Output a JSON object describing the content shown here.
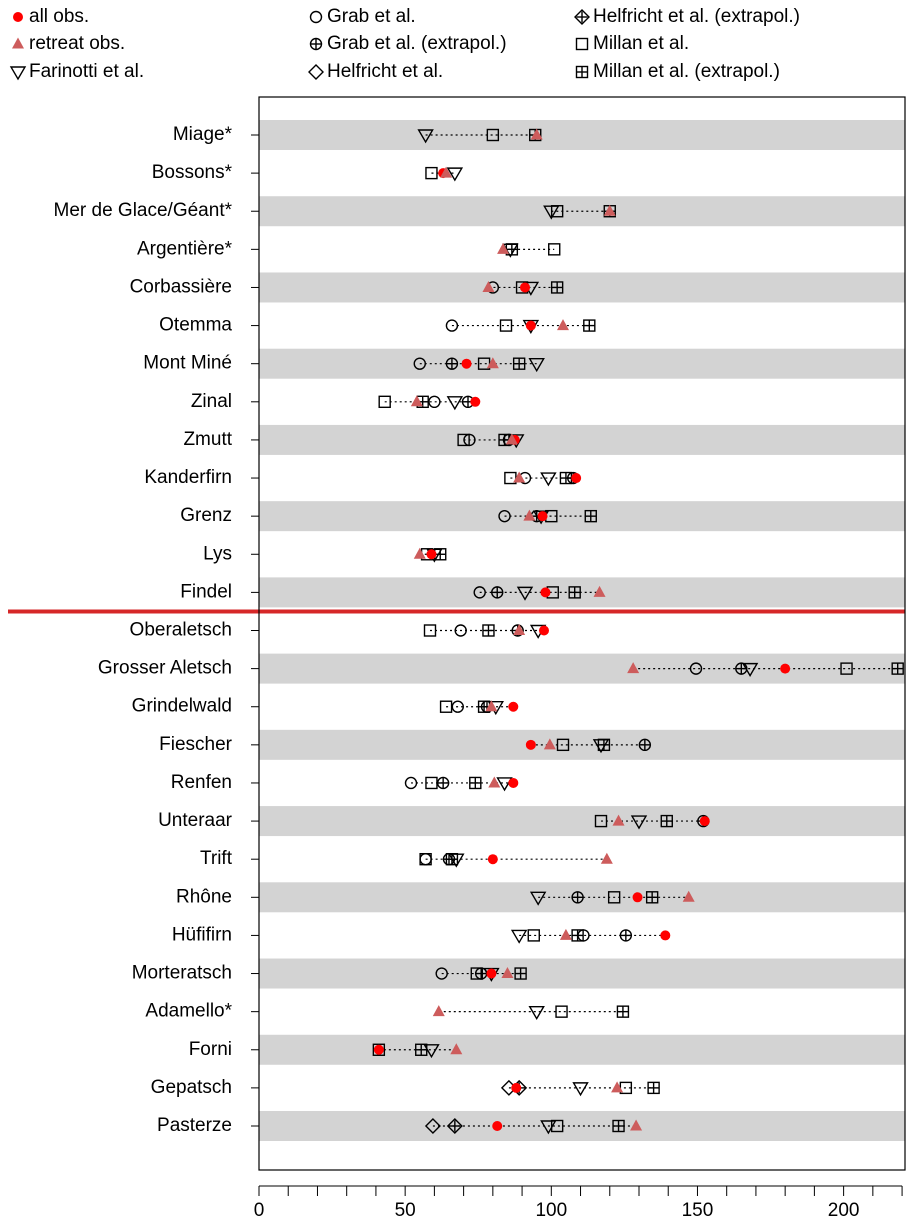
{
  "chart_data": {
    "type": "dot",
    "categories": [
      "Miage*",
      "Bossons*",
      "Mer de Glace/Géant*",
      "Argentière*",
      "Corbassière",
      "Otemma",
      "Mont Miné",
      "Zinal",
      "Zmutt",
      "Kanderfirn",
      "Grenz",
      "Lys",
      "Findel",
      "Oberaletsch",
      "Grosser Aletsch",
      "Grindelwald",
      "Fiescher",
      "Renfen",
      "Unteraar",
      "Trift",
      "Rhône",
      "Hüfifirn",
      "Morteratsch",
      "Adamello*",
      "Forni",
      "Gepatsch",
      "Pasterze"
    ],
    "series": [
      {
        "name": "all obs.",
        "color": "#ff0000",
        "marker": "circle-filled",
        "values": [
          null,
          63,
          null,
          null,
          91,
          93,
          71,
          74,
          87.5,
          108.5,
          97,
          59,
          98,
          97.5,
          180,
          87,
          93,
          87,
          152.5,
          80,
          129.5,
          139,
          79.5,
          null,
          41,
          88,
          81.5
        ]
      },
      {
        "name": "retreat obs.",
        "color": "#cd5c5c",
        "marker": "triangle-up",
        "values": [
          95,
          64,
          120,
          83.5,
          78.5,
          104,
          80,
          54,
          86.5,
          89,
          92.5,
          55,
          116.5,
          89,
          128,
          79.5,
          99.5,
          80.5,
          123,
          119,
          147,
          105,
          85,
          61.5,
          67.5,
          122.5,
          129
        ]
      },
      {
        "name": "Farinotti et al.",
        "color": "#000000",
        "marker": "triangle-down",
        "values": [
          57,
          67,
          100,
          86,
          93,
          93,
          95,
          67,
          88,
          99,
          96.5,
          60,
          91,
          95.5,
          168,
          81,
          117,
          84,
          130,
          67.5,
          95.5,
          89,
          79.5,
          95,
          59,
          110,
          99
        ]
      },
      {
        "name": "Grab et al.",
        "color": "#000000",
        "marker": "circle",
        "values": [
          null,
          null,
          null,
          null,
          80,
          66,
          55,
          60,
          72,
          91,
          84,
          null,
          75.5,
          69,
          149.5,
          68,
          null,
          52,
          null,
          57,
          null,
          111,
          62.5,
          null,
          null,
          null,
          null
        ]
      },
      {
        "name": "Grab et al. (extrapol.)",
        "color": "#000000",
        "marker": "circle-plus",
        "values": [
          null,
          null,
          null,
          null,
          null,
          null,
          66,
          71.5,
          85.5,
          107.5,
          95,
          null,
          81.5,
          88.5,
          165,
          78,
          132,
          63,
          152,
          65,
          109,
          125.5,
          76,
          null,
          null,
          null,
          null
        ]
      },
      {
        "name": "Helfricht et al.",
        "color": "#000000",
        "marker": "diamond",
        "values": [
          null,
          null,
          null,
          null,
          null,
          null,
          null,
          null,
          null,
          null,
          null,
          null,
          null,
          null,
          null,
          null,
          null,
          null,
          null,
          null,
          null,
          null,
          null,
          null,
          null,
          85.5,
          59.5
        ]
      },
      {
        "name": "Helfricht et al. (extrapol.)",
        "color": "#000000",
        "marker": "diamond-plus",
        "values": [
          null,
          null,
          null,
          null,
          null,
          null,
          null,
          null,
          null,
          null,
          null,
          null,
          null,
          null,
          null,
          null,
          null,
          null,
          null,
          null,
          null,
          null,
          null,
          null,
          null,
          89,
          67
        ]
      },
      {
        "name": "Millan et al.",
        "color": "#000000",
        "marker": "square",
        "values": [
          80,
          59,
          102,
          101,
          90,
          84.5,
          77,
          43,
          70,
          86,
          100,
          57.5,
          100.5,
          58.5,
          201,
          64,
          104,
          59,
          117,
          57,
          121.5,
          94,
          74.5,
          103.5,
          41,
          125.5,
          102
        ]
      },
      {
        "name": "Millan et al. (extrapol.)",
        "color": "#000000",
        "marker": "square-plus",
        "values": [
          94.5,
          null,
          120,
          86.5,
          102,
          113,
          89,
          56,
          84,
          105,
          113.5,
          62,
          108,
          78.5,
          218.5,
          77,
          118,
          74,
          139.5,
          66,
          134.5,
          109,
          89.5,
          124.5,
          55.5,
          135,
          123
        ]
      }
    ],
    "xlim": [
      0,
      221
    ],
    "xticks": [
      0,
      50,
      100,
      150,
      200
    ],
    "xticks_minor": [
      10,
      20,
      30,
      40,
      60,
      70,
      80,
      90,
      110,
      120,
      130,
      140,
      160,
      170,
      180,
      190,
      210,
      220
    ],
    "band_color": "#d3d3d3",
    "separator_color": "#d62728"
  }
}
